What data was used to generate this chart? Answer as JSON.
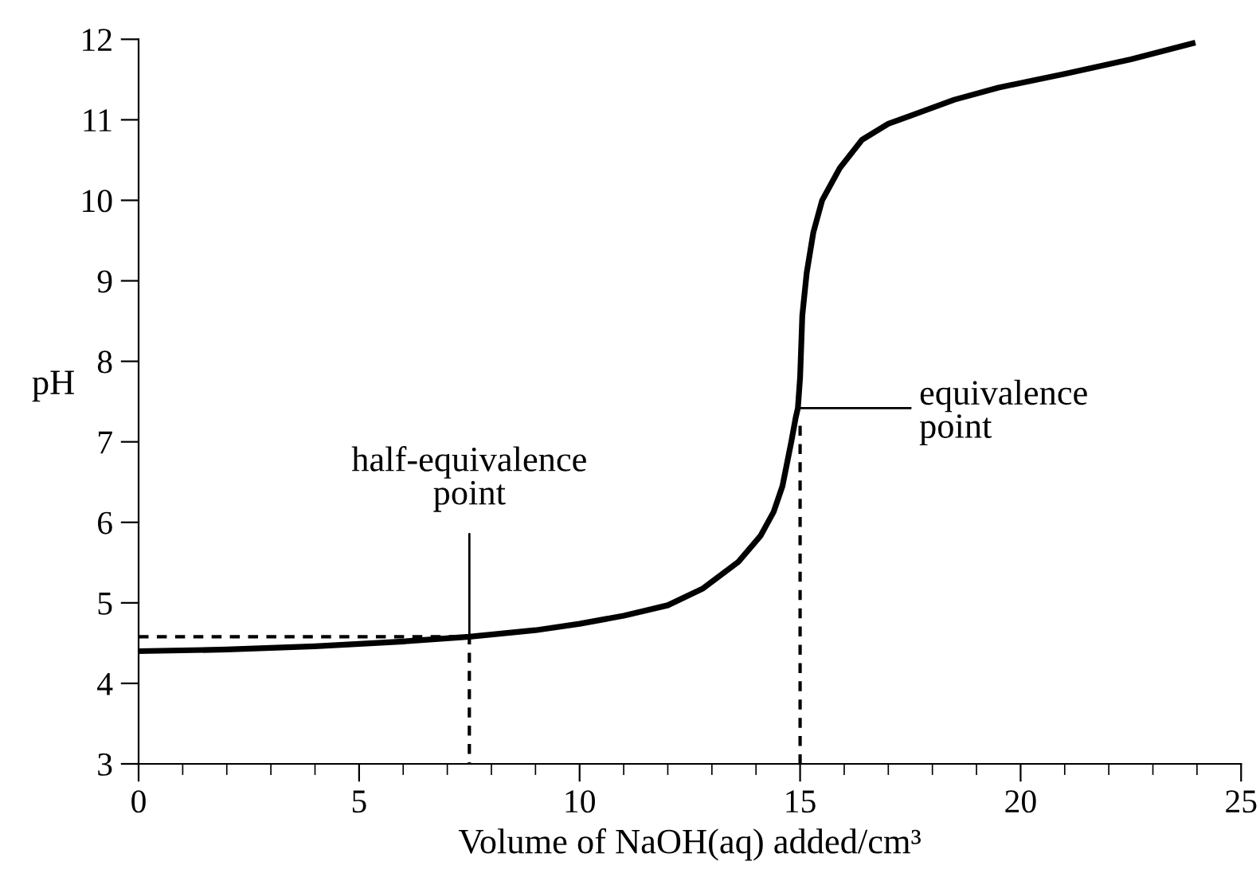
{
  "chart_data": {
    "type": "line",
    "xlabel": "Volume of NaOH(aq) added/cm³",
    "ylabel": "pH",
    "xlim": [
      0,
      25
    ],
    "ylim": [
      3,
      12
    ],
    "xticks": [
      0,
      5,
      10,
      15,
      20,
      25
    ],
    "yticks": [
      3,
      4,
      5,
      6,
      7,
      8,
      9,
      10,
      11,
      12
    ],
    "grid": false,
    "legend": false,
    "series": [
      {
        "color": "#000000",
        "line_style": "solid",
        "x": [
          0,
          2,
          4,
          6,
          7.5,
          9,
          10,
          11,
          12,
          12.8,
          13.6,
          14.1,
          14.4,
          14.6,
          14.8,
          14.9,
          14.95,
          15.0,
          15.05,
          15.15,
          15.3,
          15.5,
          15.9,
          16.4,
          17.0,
          17.5,
          18.5,
          19.5,
          21,
          22.5,
          23.9
        ],
        "values": [
          4.4,
          4.42,
          4.46,
          4.52,
          4.58,
          4.66,
          4.74,
          4.84,
          4.97,
          5.18,
          5.51,
          5.83,
          6.13,
          6.45,
          7.0,
          7.3,
          7.42,
          7.8,
          8.57,
          9.1,
          9.6,
          10.0,
          10.4,
          10.75,
          10.95,
          11.05,
          11.25,
          11.4,
          11.57,
          11.75,
          11.95
        ]
      },
      {
        "color": "#000000",
        "line_style": "dashed",
        "x": [
          0,
          7.5,
          7.5
        ],
        "values": [
          4.58,
          4.58,
          3
        ]
      },
      {
        "color": "#000000",
        "line_style": "dashed",
        "x": [
          15,
          15
        ],
        "values": [
          7.2,
          3
        ]
      }
    ],
    "annotations": [
      {
        "text": "half-equivalence\npoint",
        "x": 7.5,
        "y": 4.58
      },
      "equivalence\npoint"
    ]
  }
}
